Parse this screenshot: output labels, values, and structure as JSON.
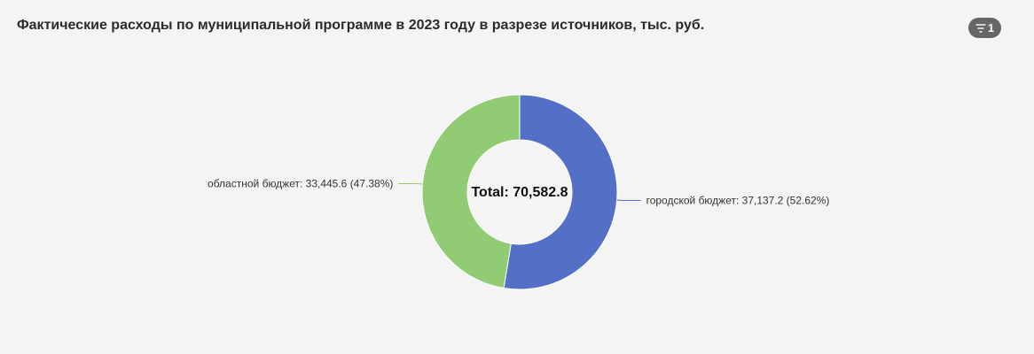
{
  "header": {
    "title": "Фактические расходы по муниципальной программе в 2023 году в разрезе источников, тыс. руб.",
    "filter_count": "1",
    "filter_icon": "filter-icon"
  },
  "chart_data": {
    "type": "pie",
    "variant": "donut",
    "total_label": "Total: 70,582.8",
    "total": 70582.8,
    "slices": [
      {
        "name": "городской бюджет",
        "value": 37137.2,
        "percent": 52.62,
        "label": "городской бюджет: 37,137.2 (52.62%)",
        "color": "#5470c6"
      },
      {
        "name": "областной бюджет",
        "value": 33445.6,
        "percent": 47.38,
        "label": "областной бюджет: 33,445.6 (47.38%)",
        "color": "#91cc75"
      }
    ]
  }
}
